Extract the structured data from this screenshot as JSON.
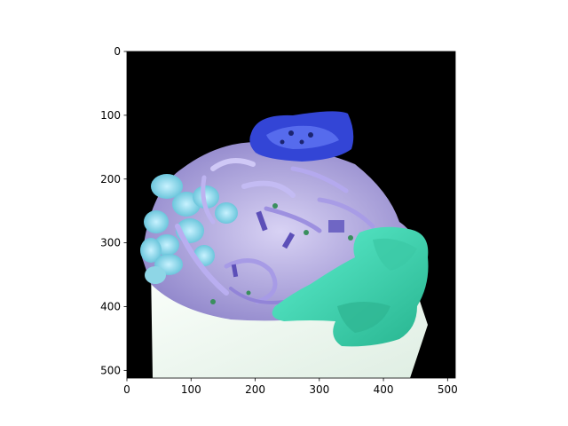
{
  "figure": {
    "background": "#ffffff",
    "image_background": "#000000",
    "image_description_colors": [
      "#3b4fd8",
      "#8fd6e8",
      "#9a8fd6",
      "#3fdcb8",
      "#e8f3ec"
    ]
  },
  "x_axis": {
    "ticks": [
      {
        "value": 0,
        "label": "0"
      },
      {
        "value": 100,
        "label": "100"
      },
      {
        "value": 200,
        "label": "200"
      },
      {
        "value": 300,
        "label": "300"
      },
      {
        "value": 400,
        "label": "400"
      },
      {
        "value": 500,
        "label": "500"
      }
    ],
    "range": [
      0,
      512
    ]
  },
  "y_axis": {
    "ticks": [
      {
        "value": 0,
        "label": "0"
      },
      {
        "value": 100,
        "label": "100"
      },
      {
        "value": 200,
        "label": "200"
      },
      {
        "value": 300,
        "label": "300"
      },
      {
        "value": 400,
        "label": "400"
      },
      {
        "value": 500,
        "label": "500"
      }
    ],
    "range": [
      0,
      512
    ],
    "inverted": true
  }
}
